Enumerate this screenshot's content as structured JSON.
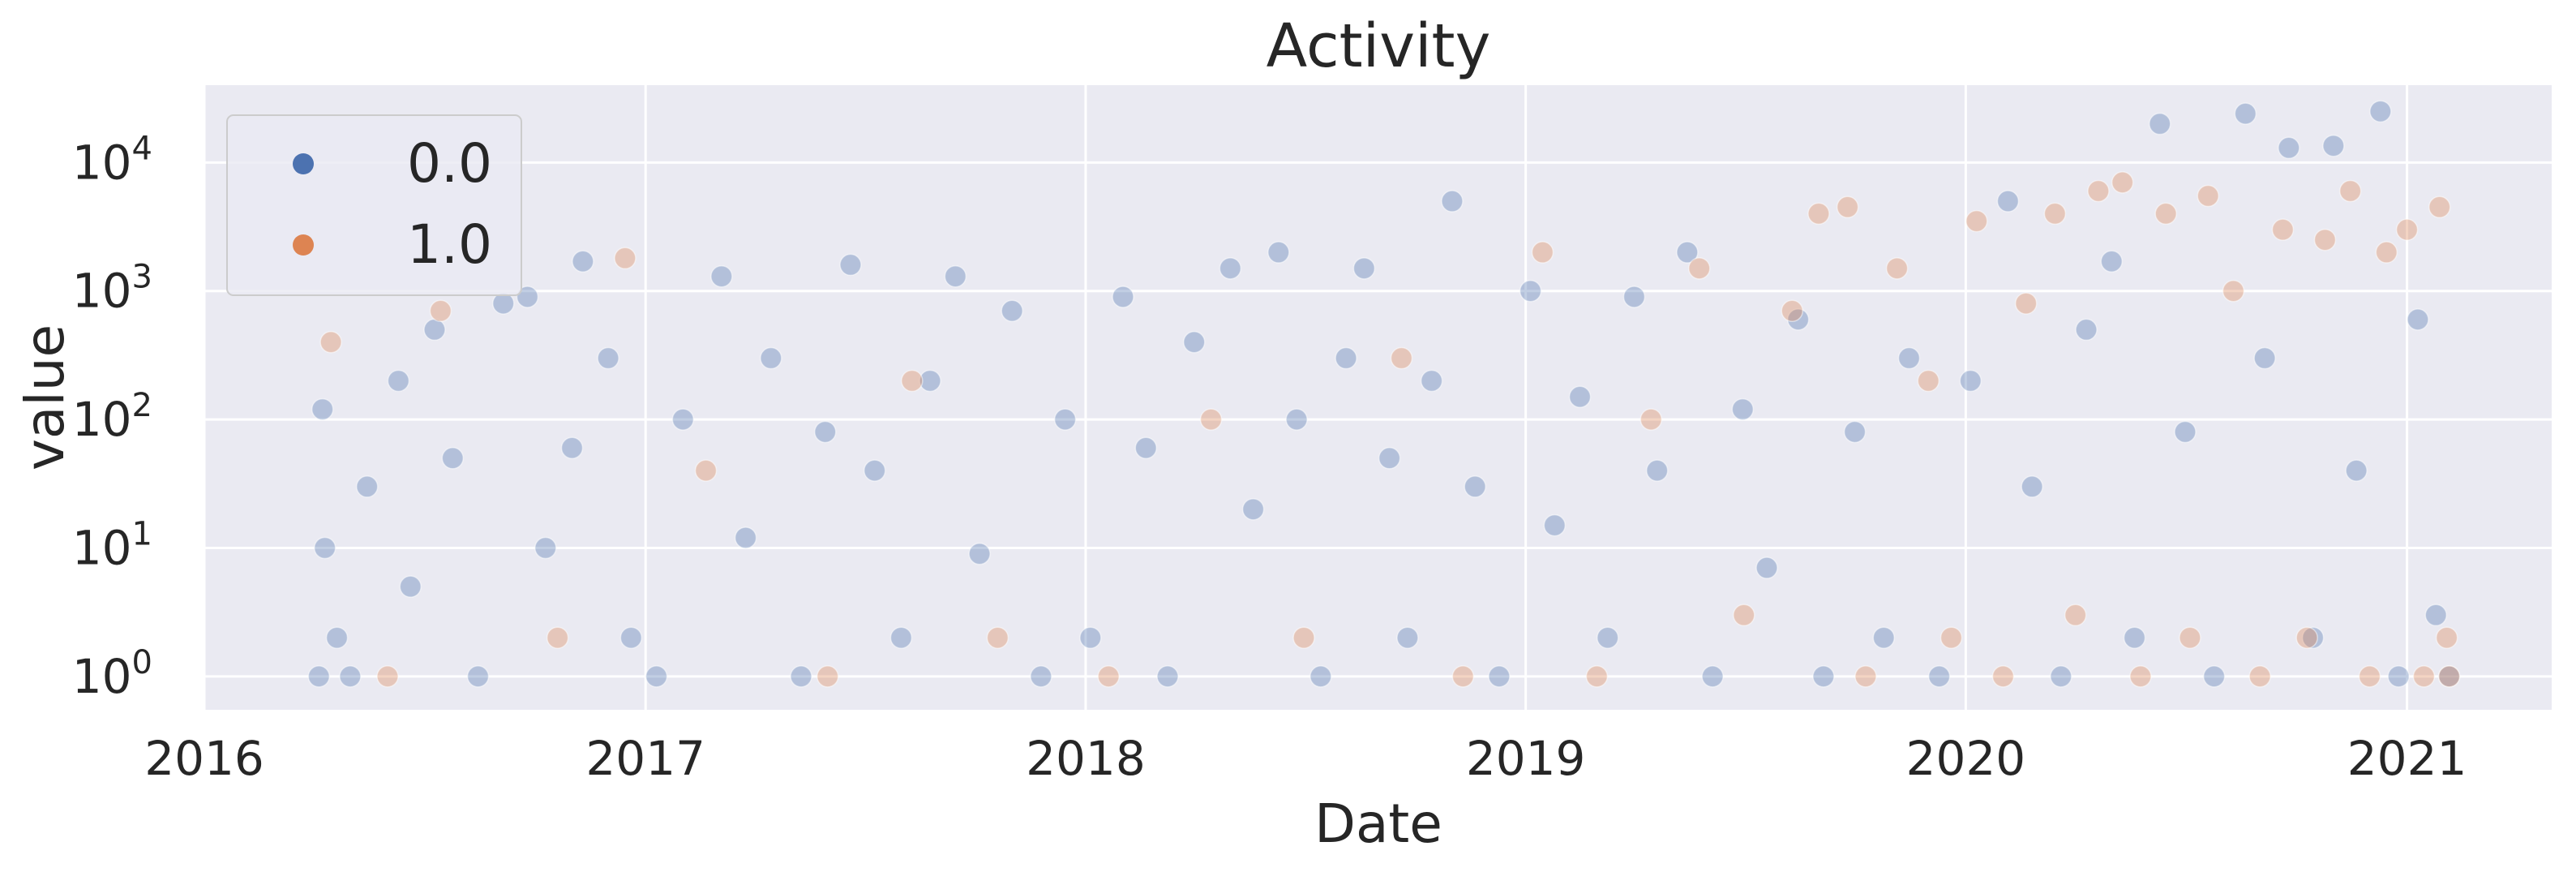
{
  "chart_data": {
    "type": "scatter",
    "title": "Activity",
    "xlabel": "Date",
    "ylabel": "value",
    "x_scale": "time",
    "y_scale": "log",
    "xlim": [
      "2016-01-01",
      "2021-05-01"
    ],
    "ylim": [
      0.55,
      40000
    ],
    "x_ticks": [
      "2016-01-01",
      "2017-01-01",
      "2018-01-01",
      "2019-01-01",
      "2020-01-01",
      "2021-01-01"
    ],
    "x_tick_labels": [
      "2016",
      "2017",
      "2018",
      "2019",
      "2020",
      "2021"
    ],
    "y_ticks": [
      1,
      10,
      100,
      1000,
      10000
    ],
    "y_tick_labels": [
      {
        "base": "10",
        "exp": "0"
      },
      {
        "base": "10",
        "exp": "1"
      },
      {
        "base": "10",
        "exp": "2"
      },
      {
        "base": "10",
        "exp": "3"
      },
      {
        "base": "10",
        "exp": "4"
      }
    ],
    "grid": true,
    "legend_position": "top-left",
    "series": [
      {
        "name": "0.0",
        "color": "#4c72b0",
        "points": [
          [
            "2016-04-05",
            1
          ],
          [
            "2016-04-20",
            2
          ],
          [
            "2016-04-10",
            10
          ],
          [
            "2016-04-08",
            120
          ],
          [
            "2016-05-01",
            1
          ],
          [
            "2016-05-15",
            30
          ],
          [
            "2016-06-10",
            200
          ],
          [
            "2016-06-20",
            5
          ],
          [
            "2016-07-10",
            500
          ],
          [
            "2016-07-25",
            50
          ],
          [
            "2016-08-15",
            1
          ],
          [
            "2016-09-05",
            800
          ],
          [
            "2016-09-25",
            900
          ],
          [
            "2016-10-10",
            10
          ],
          [
            "2016-11-01",
            60
          ],
          [
            "2016-11-10",
            1700
          ],
          [
            "2016-12-01",
            300
          ],
          [
            "2016-12-20",
            2
          ],
          [
            "2017-01-10",
            1
          ],
          [
            "2017-02-01",
            100
          ],
          [
            "2017-03-05",
            1300
          ],
          [
            "2017-03-25",
            12
          ],
          [
            "2017-04-15",
            300
          ],
          [
            "2017-05-10",
            1
          ],
          [
            "2017-05-30",
            80
          ],
          [
            "2017-06-20",
            1600
          ],
          [
            "2017-07-10",
            40
          ],
          [
            "2017-08-01",
            2
          ],
          [
            "2017-08-25",
            200
          ],
          [
            "2017-09-15",
            1300
          ],
          [
            "2017-10-05",
            9
          ],
          [
            "2017-11-01",
            700
          ],
          [
            "2017-11-25",
            1
          ],
          [
            "2017-12-15",
            100
          ],
          [
            "2018-01-05",
            2
          ],
          [
            "2018-02-01",
            900
          ],
          [
            "2018-02-20",
            60
          ],
          [
            "2018-03-10",
            1
          ],
          [
            "2018-04-01",
            400
          ],
          [
            "2018-05-01",
            1500
          ],
          [
            "2018-05-20",
            20
          ],
          [
            "2018-06-10",
            2000
          ],
          [
            "2018-06-25",
            100
          ],
          [
            "2018-07-15",
            1
          ],
          [
            "2018-08-05",
            300
          ],
          [
            "2018-08-20",
            1500
          ],
          [
            "2018-09-10",
            50
          ],
          [
            "2018-09-25",
            2
          ],
          [
            "2018-10-15",
            200
          ],
          [
            "2018-11-01",
            5000
          ],
          [
            "2018-11-20",
            30
          ],
          [
            "2018-12-10",
            1
          ],
          [
            "2019-01-05",
            1000
          ],
          [
            "2019-01-25",
            15
          ],
          [
            "2019-02-15",
            150
          ],
          [
            "2019-03-10",
            2
          ],
          [
            "2019-04-01",
            900
          ],
          [
            "2019-04-20",
            40
          ],
          [
            "2019-05-15",
            2000
          ],
          [
            "2019-06-05",
            1
          ],
          [
            "2019-06-30",
            120
          ],
          [
            "2019-07-20",
            7
          ],
          [
            "2019-08-15",
            600
          ],
          [
            "2019-09-05",
            1
          ],
          [
            "2019-10-01",
            80
          ],
          [
            "2019-10-25",
            2
          ],
          [
            "2019-11-15",
            300
          ],
          [
            "2019-12-10",
            1
          ],
          [
            "2020-01-05",
            200
          ],
          [
            "2020-02-05",
            5000
          ],
          [
            "2020-02-25",
            30
          ],
          [
            "2020-03-20",
            1
          ],
          [
            "2020-04-10",
            500
          ],
          [
            "2020-05-01",
            1700
          ],
          [
            "2020-05-20",
            2
          ],
          [
            "2020-06-10",
            20000
          ],
          [
            "2020-07-01",
            80
          ],
          [
            "2020-07-25",
            1
          ],
          [
            "2020-08-20",
            24000
          ],
          [
            "2020-09-05",
            300
          ],
          [
            "2020-09-25",
            13000
          ],
          [
            "2020-10-15",
            2
          ],
          [
            "2020-11-01",
            13500
          ],
          [
            "2020-11-20",
            40
          ],
          [
            "2020-12-10",
            25000
          ],
          [
            "2020-12-25",
            1
          ],
          [
            "2021-01-10",
            600
          ],
          [
            "2021-01-25",
            3
          ],
          [
            "2021-02-05",
            1
          ]
        ]
      },
      {
        "name": "1.0",
        "color": "#dd8452",
        "points": [
          [
            "2016-04-15",
            400
          ],
          [
            "2016-06-01",
            1
          ],
          [
            "2016-07-15",
            700
          ],
          [
            "2016-10-20",
            2
          ],
          [
            "2016-12-15",
            1800
          ],
          [
            "2017-02-20",
            40
          ],
          [
            "2017-06-01",
            1
          ],
          [
            "2017-08-10",
            200
          ],
          [
            "2017-10-20",
            2
          ],
          [
            "2018-01-20",
            1
          ],
          [
            "2018-04-15",
            100
          ],
          [
            "2018-07-01",
            2
          ],
          [
            "2018-09-20",
            300
          ],
          [
            "2018-11-10",
            1
          ],
          [
            "2019-01-15",
            2000
          ],
          [
            "2019-03-01",
            1
          ],
          [
            "2019-04-15",
            100
          ],
          [
            "2019-05-25",
            1500
          ],
          [
            "2019-07-01",
            3
          ],
          [
            "2019-08-10",
            700
          ],
          [
            "2019-09-01",
            4000
          ],
          [
            "2019-09-25",
            4500
          ],
          [
            "2019-10-10",
            1
          ],
          [
            "2019-11-05",
            1500
          ],
          [
            "2019-12-01",
            200
          ],
          [
            "2019-12-20",
            2
          ],
          [
            "2020-01-10",
            3500
          ],
          [
            "2020-02-01",
            1
          ],
          [
            "2020-02-20",
            800
          ],
          [
            "2020-03-15",
            4000
          ],
          [
            "2020-04-01",
            3
          ],
          [
            "2020-04-20",
            6000
          ],
          [
            "2020-05-10",
            7000
          ],
          [
            "2020-05-25",
            1
          ],
          [
            "2020-06-15",
            4000
          ],
          [
            "2020-07-05",
            2
          ],
          [
            "2020-07-20",
            5500
          ],
          [
            "2020-08-10",
            1000
          ],
          [
            "2020-09-01",
            1
          ],
          [
            "2020-09-20",
            3000
          ],
          [
            "2020-10-10",
            2
          ],
          [
            "2020-10-25",
            2500
          ],
          [
            "2020-11-15",
            6000
          ],
          [
            "2020-12-01",
            1
          ],
          [
            "2020-12-15",
            2000
          ],
          [
            "2021-01-01",
            3000
          ],
          [
            "2021-01-15",
            1
          ],
          [
            "2021-01-28",
            4500
          ],
          [
            "2021-02-03",
            2
          ],
          [
            "2021-02-05",
            1
          ]
        ]
      }
    ]
  }
}
